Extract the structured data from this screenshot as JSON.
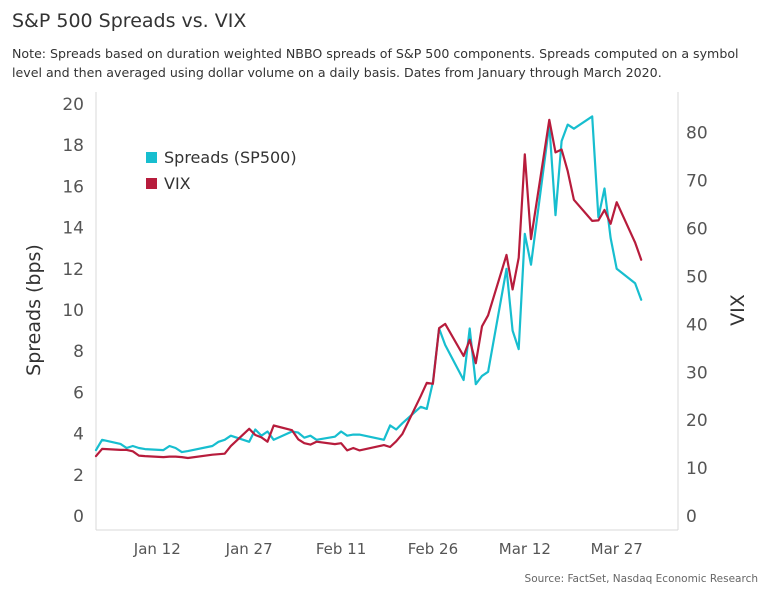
{
  "title": "S&P 500 Spreads vs. VIX",
  "note": "Note: Spreads based on duration weighted NBBO spreads of S&P 500 components. Spreads computed on a symbol level and then averaged using dollar volume on a daily basis. Dates from January through March 2020.",
  "source": "Source:  FactSet, Nasdaq Economic Research",
  "colors": {
    "spreads": "#17becf",
    "vix": "#b71c3c",
    "axis_text": "#555555",
    "grid": "#d9d9d9"
  },
  "chart_data": {
    "type": "line",
    "title": "S&P 500 Spreads vs. VIX",
    "xlabel": "",
    "ylabel": "Spreads (bps)",
    "y2label": "VIX",
    "x_ticks": [
      "Jan 12",
      "Jan 27",
      "Feb 11",
      "Feb 26",
      "Mar 12",
      "Mar 27"
    ],
    "x_tick_dates": [
      "2020-01-12",
      "2020-01-27",
      "2020-02-11",
      "2020-02-26",
      "2020-03-12",
      "2020-03-27"
    ],
    "xlim": [
      "2020-01-02",
      "2020-04-06"
    ],
    "ylim": [
      0,
      20
    ],
    "y_ticks": [
      0,
      2,
      4,
      6,
      8,
      10,
      12,
      14,
      16,
      18,
      20
    ],
    "y2lim": [
      0,
      86
    ],
    "y2_ticks": [
      0,
      10,
      20,
      30,
      40,
      50,
      60,
      70,
      80
    ],
    "legend_position": "top-left",
    "grid": false,
    "series": [
      {
        "name": "Spreads (SP500)",
        "axis": "left",
        "x": [
          "2020-01-02",
          "2020-01-03",
          "2020-01-06",
          "2020-01-07",
          "2020-01-08",
          "2020-01-09",
          "2020-01-10",
          "2020-01-13",
          "2020-01-14",
          "2020-01-15",
          "2020-01-16",
          "2020-01-17",
          "2020-01-21",
          "2020-01-22",
          "2020-01-23",
          "2020-01-24",
          "2020-01-27",
          "2020-01-28",
          "2020-01-29",
          "2020-01-30",
          "2020-01-31",
          "2020-02-03",
          "2020-02-04",
          "2020-02-05",
          "2020-02-06",
          "2020-02-07",
          "2020-02-10",
          "2020-02-11",
          "2020-02-12",
          "2020-02-13",
          "2020-02-14",
          "2020-02-18",
          "2020-02-19",
          "2020-02-20",
          "2020-02-21",
          "2020-02-24",
          "2020-02-25",
          "2020-02-26",
          "2020-02-27",
          "2020-02-28",
          "2020-03-02",
          "2020-03-03",
          "2020-03-04",
          "2020-03-05",
          "2020-03-06",
          "2020-03-09",
          "2020-03-10",
          "2020-03-11",
          "2020-03-12",
          "2020-03-13",
          "2020-03-16",
          "2020-03-17",
          "2020-03-18",
          "2020-03-19",
          "2020-03-20",
          "2020-03-23",
          "2020-03-24",
          "2020-03-25",
          "2020-03-26",
          "2020-03-27",
          "2020-03-30",
          "2020-03-31"
        ],
        "values": [
          3.2,
          3.7,
          3.5,
          3.3,
          3.4,
          3.3,
          3.25,
          3.2,
          3.4,
          3.3,
          3.1,
          3.15,
          3.4,
          3.6,
          3.7,
          3.9,
          3.6,
          4.2,
          3.9,
          4.1,
          3.7,
          4.1,
          4.05,
          3.8,
          3.9,
          3.7,
          3.85,
          4.1,
          3.9,
          3.95,
          3.95,
          3.7,
          4.4,
          4.2,
          4.5,
          5.3,
          5.2,
          6.5,
          9.1,
          8.3,
          6.6,
          9.1,
          6.4,
          6.8,
          7.0,
          12.0,
          9.0,
          8.1,
          13.7,
          12.2,
          19.0,
          14.6,
          18.2,
          19.0,
          18.8,
          19.4,
          14.5,
          15.9,
          13.5,
          12.0,
          11.3,
          10.5
        ]
      },
      {
        "name": "VIX",
        "axis": "right",
        "x": [
          "2020-01-02",
          "2020-01-03",
          "2020-01-06",
          "2020-01-07",
          "2020-01-08",
          "2020-01-09",
          "2020-01-10",
          "2020-01-13",
          "2020-01-14",
          "2020-01-15",
          "2020-01-16",
          "2020-01-17",
          "2020-01-21",
          "2020-01-22",
          "2020-01-23",
          "2020-01-24",
          "2020-01-27",
          "2020-01-28",
          "2020-01-29",
          "2020-01-30",
          "2020-01-31",
          "2020-02-03",
          "2020-02-04",
          "2020-02-05",
          "2020-02-06",
          "2020-02-07",
          "2020-02-10",
          "2020-02-11",
          "2020-02-12",
          "2020-02-13",
          "2020-02-14",
          "2020-02-18",
          "2020-02-19",
          "2020-02-20",
          "2020-02-21",
          "2020-02-24",
          "2020-02-25",
          "2020-02-26",
          "2020-02-27",
          "2020-02-28",
          "2020-03-02",
          "2020-03-03",
          "2020-03-04",
          "2020-03-05",
          "2020-03-06",
          "2020-03-09",
          "2020-03-10",
          "2020-03-11",
          "2020-03-12",
          "2020-03-13",
          "2020-03-16",
          "2020-03-17",
          "2020-03-18",
          "2020-03-19",
          "2020-03-20",
          "2020-03-23",
          "2020-03-24",
          "2020-03-25",
          "2020-03-26",
          "2020-03-27",
          "2020-03-30",
          "2020-03-31"
        ],
        "values": [
          12.5,
          14.0,
          13.8,
          13.8,
          13.5,
          12.6,
          12.5,
          12.3,
          12.4,
          12.4,
          12.3,
          12.1,
          12.8,
          12.9,
          13.0,
          14.6,
          18.2,
          16.9,
          16.4,
          15.5,
          18.9,
          17.9,
          16.0,
          15.2,
          14.9,
          15.5,
          15.0,
          15.2,
          13.7,
          14.2,
          13.7,
          14.8,
          14.4,
          15.6,
          17.1,
          25.0,
          27.8,
          27.6,
          39.2,
          40.1,
          33.4,
          36.8,
          31.9,
          39.6,
          41.9,
          54.5,
          47.3,
          53.9,
          75.5,
          57.8,
          82.7,
          75.9,
          76.5,
          72.0,
          66.0,
          61.6,
          61.7,
          63.9,
          61.0,
          65.5,
          57.1,
          53.5
        ]
      }
    ]
  }
}
